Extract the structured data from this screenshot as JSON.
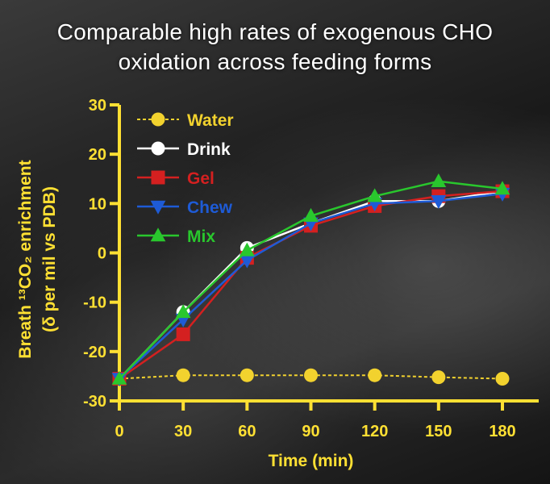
{
  "title": {
    "line1": "Comparable high rates of exogenous CHO",
    "line2": "oxidation across feeding forms"
  },
  "colors": {
    "axis": "#FFE033",
    "water": "#F2D22E",
    "drink": "#FFFFFF",
    "gel": "#D42020",
    "chew": "#1E5BD6",
    "mix": "#29C72D"
  },
  "chart_data": {
    "type": "line",
    "title": "Comparable high rates of exogenous CHO oxidation across feeding forms",
    "xlabel": "Time (min)",
    "ylabel_line1": "Breath ¹³CO₂ enrichment",
    "ylabel_line2": "(δ per mil vs PDB)",
    "x": [
      0,
      30,
      60,
      90,
      120,
      150,
      180
    ],
    "xlim": [
      0,
      180
    ],
    "ylim": [
      -30,
      30
    ],
    "x_ticks": [
      "0",
      "30",
      "60",
      "90",
      "120",
      "150",
      "180"
    ],
    "y_ticks": [
      "30",
      "20",
      "10",
      "0",
      "-10",
      "-20",
      "-30"
    ],
    "legend_position": "top-left",
    "grid": false,
    "series": [
      {
        "name": "Water",
        "marker": "circle",
        "dashed": true,
        "values": [
          -25.5,
          -24.8,
          -24.8,
          -24.8,
          -24.8,
          -25.2,
          -25.5
        ]
      },
      {
        "name": "Drink",
        "marker": "circle",
        "dashed": false,
        "values": [
          -25.5,
          -12,
          1,
          6,
          10.5,
          10.5,
          12.5
        ]
      },
      {
        "name": "Gel",
        "marker": "square",
        "dashed": false,
        "values": [
          -25.5,
          -16.5,
          -1,
          5.5,
          9.5,
          11.5,
          12.5
        ]
      },
      {
        "name": "Chew",
        "marker": "triangle-down",
        "dashed": false,
        "values": [
          -25.5,
          -13.5,
          -1.5,
          6,
          10,
          10.5,
          12
        ]
      },
      {
        "name": "Mix",
        "marker": "triangle-up",
        "dashed": false,
        "values": [
          -25.5,
          -12,
          0.5,
          7.5,
          11.5,
          14.5,
          13
        ]
      }
    ]
  }
}
